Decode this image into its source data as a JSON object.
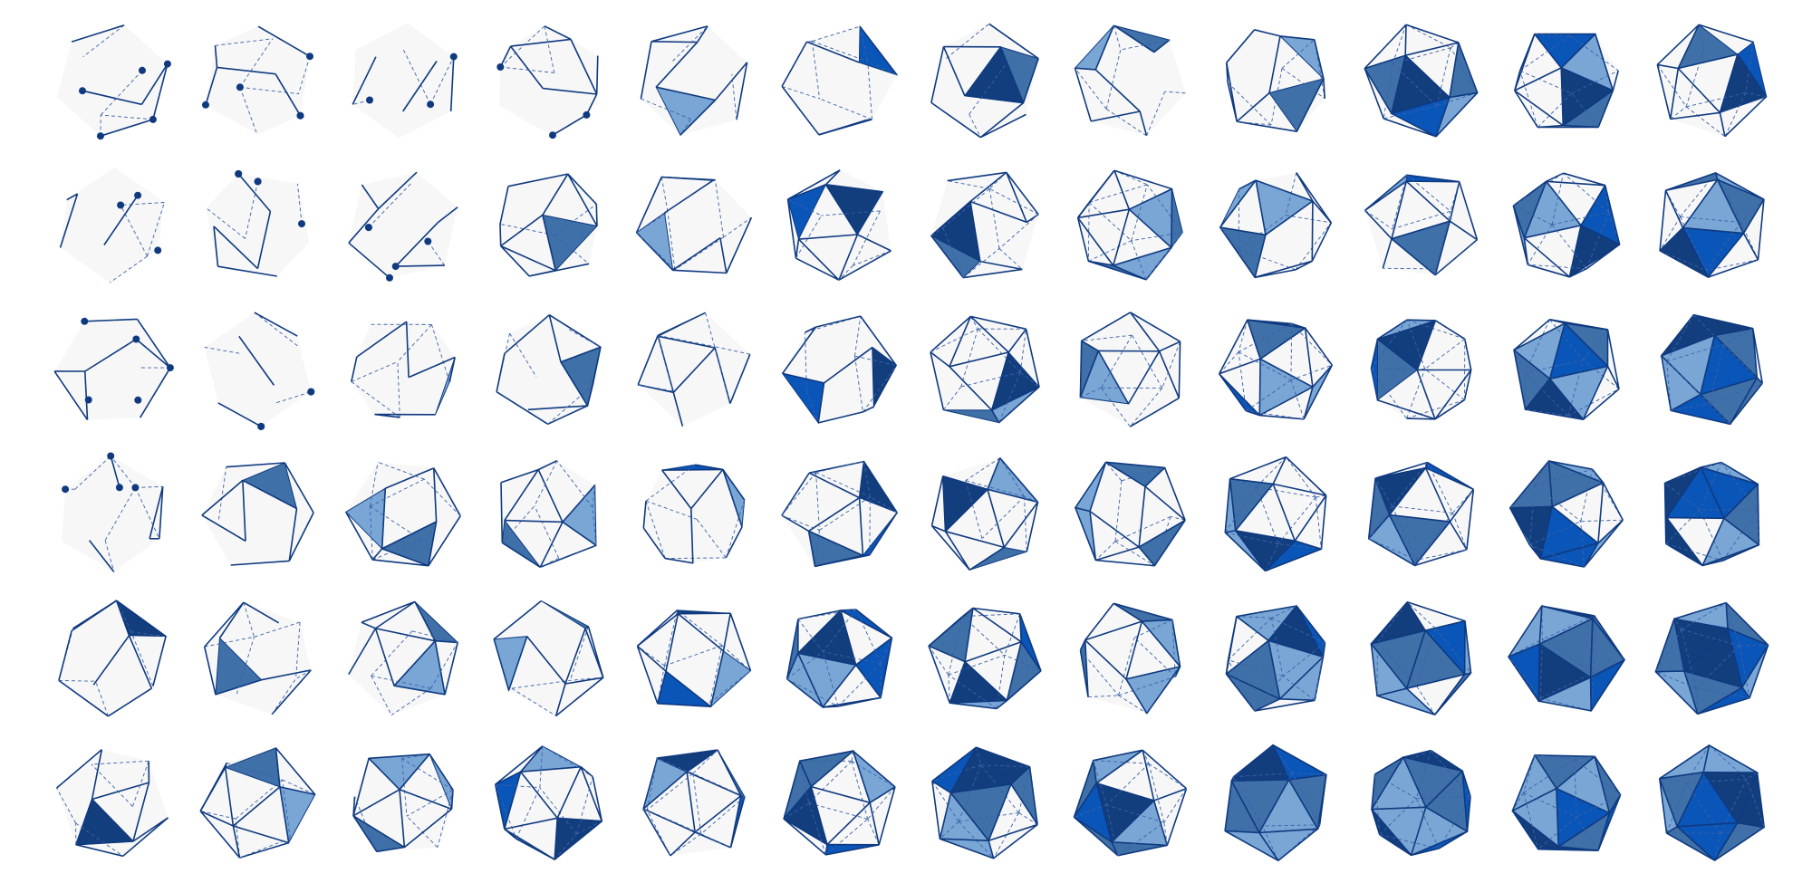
{
  "figure": {
    "rows": 6,
    "cols": 12,
    "colors": {
      "background": "#ffffff",
      "face_base": "#f7f7f7",
      "edge": "#0f3a80",
      "hidden_edge": "#3b62a8",
      "vertex_dot": "#0f3a80",
      "shade_dark": "#123e7d",
      "shade_mid": "#3f70a8",
      "shade_light": "#7aa6d6",
      "shade_bright": "#0a55b8"
    },
    "cells": [
      {
        "label": "r1-c1",
        "stage": 0.02
      },
      {
        "label": "r1-c2",
        "stage": 0.03
      },
      {
        "label": "r1-c3",
        "stage": 0.05
      },
      {
        "label": "r1-c4",
        "stage": 0.07
      },
      {
        "label": "r1-c5",
        "stage": 0.18
      },
      {
        "label": "r1-c6",
        "stage": 0.22
      },
      {
        "label": "r1-c7",
        "stage": 0.25
      },
      {
        "label": "r1-c8",
        "stage": 0.28
      },
      {
        "label": "r1-c9",
        "stage": 0.32
      },
      {
        "label": "r1-c10",
        "stage": 0.55
      },
      {
        "label": "r1-c11",
        "stage": 0.48
      },
      {
        "label": "r1-c12",
        "stage": 0.42
      },
      {
        "label": "r2-c1",
        "stage": 0.04
      },
      {
        "label": "r2-c2",
        "stage": 0.06
      },
      {
        "label": "r2-c3",
        "stage": 0.09
      },
      {
        "label": "r2-c4",
        "stage": 0.14
      },
      {
        "label": "r2-c5",
        "stage": 0.2
      },
      {
        "label": "r2-c6",
        "stage": 0.24
      },
      {
        "label": "r2-c7",
        "stage": 0.34
      },
      {
        "label": "r2-c8",
        "stage": 0.46
      },
      {
        "label": "r2-c9",
        "stage": 0.44
      },
      {
        "label": "r2-c10",
        "stage": 0.4
      },
      {
        "label": "r2-c11",
        "stage": 0.58
      },
      {
        "label": "r2-c12",
        "stage": 0.7
      },
      {
        "label": "r3-c1",
        "stage": 0.05
      },
      {
        "label": "r3-c2",
        "stage": 0.08
      },
      {
        "label": "r3-c3",
        "stage": 0.13
      },
      {
        "label": "r3-c4",
        "stage": 0.19
      },
      {
        "label": "r3-c5",
        "stage": 0.23
      },
      {
        "label": "r3-c6",
        "stage": 0.27
      },
      {
        "label": "r3-c7",
        "stage": 0.38
      },
      {
        "label": "r3-c8",
        "stage": 0.33
      },
      {
        "label": "r3-c9",
        "stage": 0.62
      },
      {
        "label": "r3-c10",
        "stage": 0.5
      },
      {
        "label": "r3-c11",
        "stage": 0.72
      },
      {
        "label": "r3-c12",
        "stage": 0.9
      },
      {
        "label": "r4-c1",
        "stage": 0.08
      },
      {
        "label": "r4-c2",
        "stage": 0.21
      },
      {
        "label": "r4-c3",
        "stage": 0.24
      },
      {
        "label": "r4-c4",
        "stage": 0.3
      },
      {
        "label": "r4-c5",
        "stage": 0.31
      },
      {
        "label": "r4-c6",
        "stage": 0.42
      },
      {
        "label": "r4-c7",
        "stage": 0.4
      },
      {
        "label": "r4-c8",
        "stage": 0.5
      },
      {
        "label": "r4-c9",
        "stage": 0.6
      },
      {
        "label": "r4-c10",
        "stage": 0.62
      },
      {
        "label": "r4-c11",
        "stage": 0.82
      },
      {
        "label": "r4-c12",
        "stage": 0.95
      },
      {
        "label": "r5-c1",
        "stage": 0.16
      },
      {
        "label": "r5-c2",
        "stage": 0.22
      },
      {
        "label": "r5-c3",
        "stage": 0.3
      },
      {
        "label": "r5-c4",
        "stage": 0.28
      },
      {
        "label": "r5-c5",
        "stage": 0.36
      },
      {
        "label": "r5-c6",
        "stage": 0.74
      },
      {
        "label": "r5-c7",
        "stage": 0.66
      },
      {
        "label": "r5-c8",
        "stage": 0.52
      },
      {
        "label": "r5-c9",
        "stage": 0.8
      },
      {
        "label": "r5-c10",
        "stage": 0.86
      },
      {
        "label": "r5-c11",
        "stage": 0.97
      },
      {
        "label": "r5-c12",
        "stage": 1.0
      },
      {
        "label": "r6-c1",
        "stage": 0.2
      },
      {
        "label": "r6-c2",
        "stage": 0.3
      },
      {
        "label": "r6-c3",
        "stage": 0.38
      },
      {
        "label": "r6-c4",
        "stage": 0.45
      },
      {
        "label": "r6-c5",
        "stage": 0.5
      },
      {
        "label": "r6-c6",
        "stage": 0.56
      },
      {
        "label": "r6-c7",
        "stage": 0.78
      },
      {
        "label": "r6-c8",
        "stage": 0.8
      },
      {
        "label": "r6-c9",
        "stage": 0.9
      },
      {
        "label": "r6-c10",
        "stage": 0.98
      },
      {
        "label": "r6-c11",
        "stage": 1.0
      },
      {
        "label": "r6-c12",
        "stage": 1.0
      }
    ]
  }
}
